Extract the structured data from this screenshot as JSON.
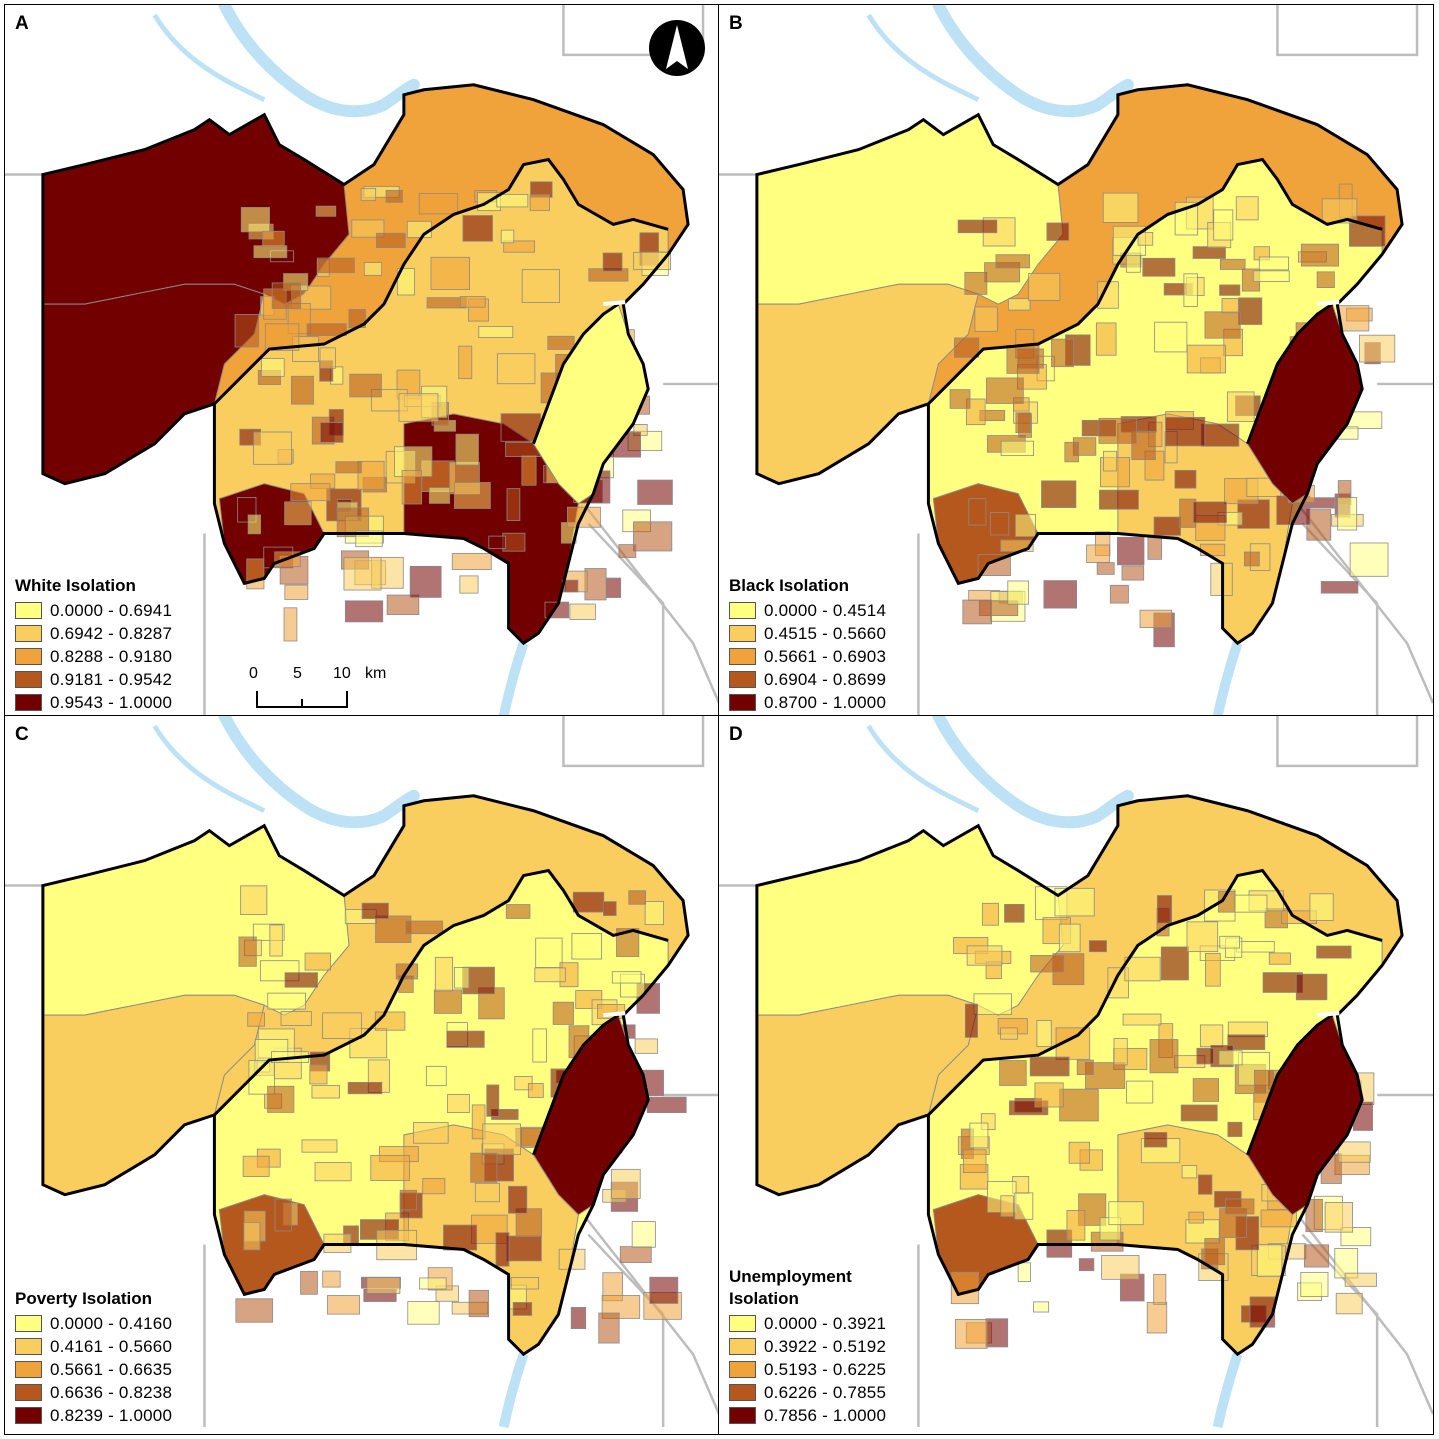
{
  "panels": [
    {
      "id": "a",
      "letter": "A",
      "legend_title": "White Isolation",
      "classes": [
        "0.0000 - 0.6941",
        "0.6942 - 0.8287",
        "0.8288 - 0.9180",
        "0.9181 - 0.9542",
        "0.9543 - 1.0000"
      ],
      "outer_ring_class": 2,
      "middle_ring_class": 1,
      "inner_ring_class": 0,
      "northwest_class": 4,
      "southwest_class": 4,
      "southern_core_class": 4
    },
    {
      "id": "b",
      "letter": "B",
      "legend_title": "Black Isolation",
      "classes": [
        "0.0000 - 0.4514",
        "0.4515 - 0.5660",
        "0.5661 - 0.6903",
        "0.6904 - 0.8699",
        "0.8700 - 1.0000"
      ],
      "outer_ring_class": 2,
      "middle_ring_class": 0,
      "inner_ring_class": 4,
      "northwest_class": 0,
      "southwest_class": 1,
      "southern_core_class": 1
    },
    {
      "id": "c",
      "letter": "C",
      "legend_title": "Poverty Isolation",
      "classes": [
        "0.0000 - 0.4160",
        "0.4161 - 0.5660",
        "0.5661 - 0.6635",
        "0.6636 - 0.8238",
        "0.8239 - 1.0000"
      ],
      "outer_ring_class": 1,
      "middle_ring_class": 0,
      "inner_ring_class": 4,
      "northwest_class": 0,
      "southwest_class": 1,
      "southern_core_class": 1
    },
    {
      "id": "d",
      "letter": "D",
      "legend_title": "Unemployment\nIsolation",
      "classes": [
        "0.0000 - 0.3921",
        "0.3922 - 0.5192",
        "0.5193 - 0.6225",
        "0.6226 - 0.7855",
        "0.7856 - 1.0000"
      ],
      "outer_ring_class": 1,
      "middle_ring_class": 0,
      "inner_ring_class": 4,
      "northwest_class": 0,
      "southwest_class": 1,
      "southern_core_class": 1
    }
  ],
  "colors": {
    "class_colors": [
      "#ffff80",
      "#f9ce5e",
      "#f0a33a",
      "#b5581e",
      "#730000"
    ],
    "water": "#bde2f5",
    "county_lines": "#bdbdbd",
    "tract_lines": "#8a8a8a",
    "boundary": "#000000"
  },
  "scale_bar": {
    "labels": [
      "0",
      "5",
      "10"
    ],
    "unit": "km"
  },
  "north_arrow_icon": "north-arrow-icon"
}
